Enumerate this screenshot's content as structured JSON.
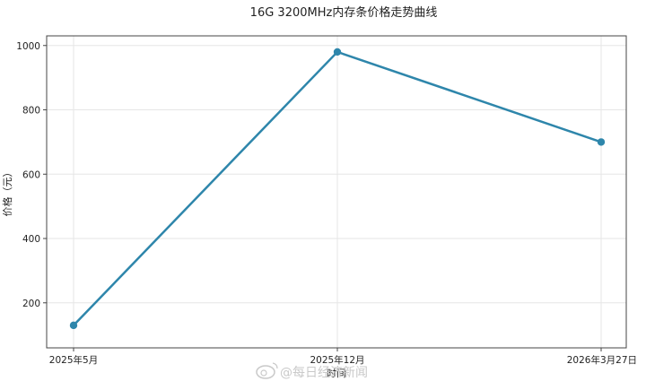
{
  "chart_data": {
    "type": "line",
    "title": "16G 3200MHz内存条价格走势曲线",
    "xlabel": "时间",
    "ylabel": "价格（元）",
    "categories": [
      "2025年5月",
      "2025年12月",
      "2026年3月27日"
    ],
    "series": [
      {
        "values": [
          130,
          980,
          700
        ],
        "color": "#2e86ab"
      }
    ],
    "ylim": [
      60,
      1030
    ],
    "yticks": [
      200,
      400,
      600,
      800,
      1000
    ],
    "grid": true,
    "legend": "none"
  },
  "watermark": {
    "text": "@每日经济新闻",
    "icon": "weibo-icon"
  }
}
